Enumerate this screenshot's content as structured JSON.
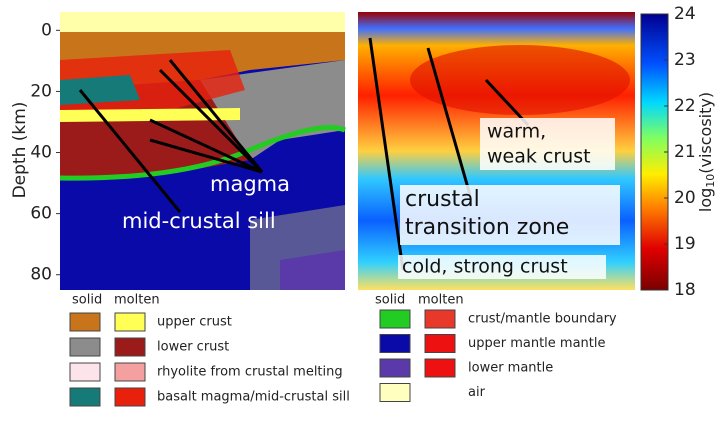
{
  "left_panel": {
    "ylabel": "Depth (km)",
    "ylim": [
      -6,
      85
    ],
    "yticks": [
      0,
      20,
      40,
      60,
      80
    ],
    "annotations": [
      "magma",
      "mid-crustal sill"
    ]
  },
  "right_panel": {
    "annotations": [
      "warm,",
      "weak crust",
      "crustal",
      "transition zone",
      "cold, strong crust"
    ]
  },
  "colorbar": {
    "label_prefix": "log",
    "label_subscript": "10",
    "label_suffix": "(viscosity)",
    "lim": [
      18,
      24
    ],
    "ticks": [
      18,
      19,
      20,
      21,
      22,
      23,
      24
    ]
  },
  "legend_left": {
    "headers": [
      "solid",
      "molten"
    ],
    "rows": [
      {
        "label": "upper crust",
        "solid": "#c8741a",
        "molten": "#ffff55"
      },
      {
        "label": "lower crust",
        "solid": "#8c8c8c",
        "molten": "#9b1b1b"
      },
      {
        "label": "rhyolite from crustal melting",
        "solid": "#fde3ea",
        "molten": "#f4a0a0"
      },
      {
        "label": "basalt magma/mid-crustal sill",
        "solid": "#167a78",
        "molten": "#e8200c"
      }
    ]
  },
  "legend_right": {
    "headers": [
      "solid",
      "molten"
    ],
    "rows": [
      {
        "label": "crust/mantle boundary",
        "solid": "#22cc22",
        "molten": "#e8382a"
      },
      {
        "label": "upper mantle mantle",
        "solid": "#0a0aa8",
        "molten": "#ee1111"
      },
      {
        "label": "lower mantle",
        "solid": "#5a3aa8",
        "molten": "#ee1111"
      },
      {
        "label": "air",
        "solid": "#ffffc0"
      }
    ]
  }
}
